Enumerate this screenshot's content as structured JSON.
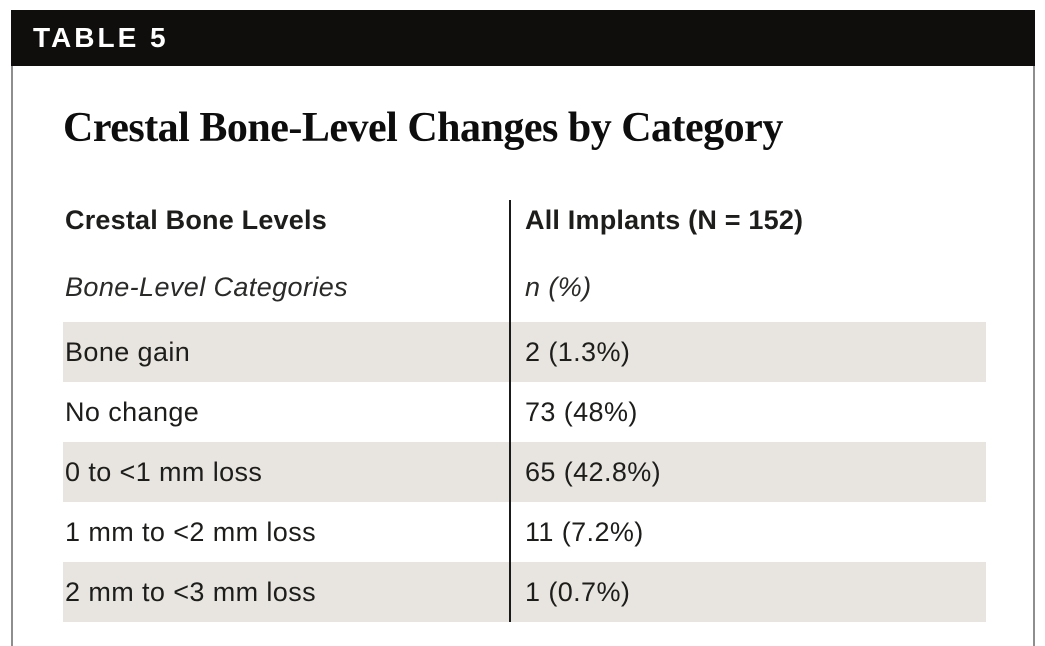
{
  "banner": {
    "label": "TABLE 5"
  },
  "title": "Crestal Bone-Level Changes by Category",
  "table": {
    "header": {
      "col1": "Crestal Bone Levels",
      "col2": "All Implants (N = 152)"
    },
    "subheader": {
      "col1": "Bone-Level Categories",
      "col2": "n (%)"
    },
    "rows": [
      {
        "category": "Bone gain",
        "value": "2 (1.3%)",
        "shaded": true
      },
      {
        "category": "No change",
        "value": "73 (48%)",
        "shaded": false
      },
      {
        "category": "0 to <1 mm loss",
        "value": "65 (42.8%)",
        "shaded": true
      },
      {
        "category": "1 mm to <2 mm loss",
        "value": "11 (7.2%)",
        "shaded": false
      },
      {
        "category": "2 mm to <3 mm loss",
        "value": "1 (0.7%)",
        "shaded": true
      }
    ]
  },
  "colors": {
    "banner_bg": "#0f0e0c",
    "banner_text": "#ffffff",
    "row_shade": "#e8e5e0",
    "card_border": "#8e8e8e",
    "column_divider": "#1a1a1a",
    "text": "#1d1d1b"
  }
}
